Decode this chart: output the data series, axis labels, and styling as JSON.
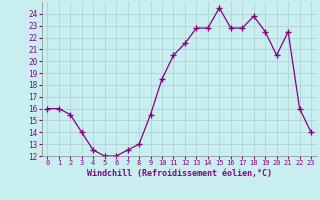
{
  "x": [
    0,
    1,
    2,
    3,
    4,
    5,
    6,
    7,
    8,
    9,
    10,
    11,
    12,
    13,
    14,
    15,
    16,
    17,
    18,
    19,
    20,
    21,
    22,
    23
  ],
  "y": [
    16,
    16,
    15.5,
    14,
    12.5,
    12,
    12,
    12.5,
    13,
    15.5,
    18.5,
    20.5,
    21.5,
    22.8,
    22.8,
    24.5,
    22.8,
    22.8,
    23.8,
    22.5,
    20.5,
    22.5,
    16,
    14
  ],
  "xlabel": "Windchill (Refroidissement éolien,°C)",
  "ylim": [
    12,
    25
  ],
  "xlim": [
    -0.5,
    23.5
  ],
  "yticks": [
    12,
    13,
    14,
    15,
    16,
    17,
    18,
    19,
    20,
    21,
    22,
    23,
    24
  ],
  "xticks": [
    0,
    1,
    2,
    3,
    4,
    5,
    6,
    7,
    8,
    9,
    10,
    11,
    12,
    13,
    14,
    15,
    16,
    17,
    18,
    19,
    20,
    21,
    22,
    23
  ],
  "line_color": "#880088",
  "background_color": "#c8eef0",
  "grid_color": "#aacccc",
  "label_color": "#880088"
}
